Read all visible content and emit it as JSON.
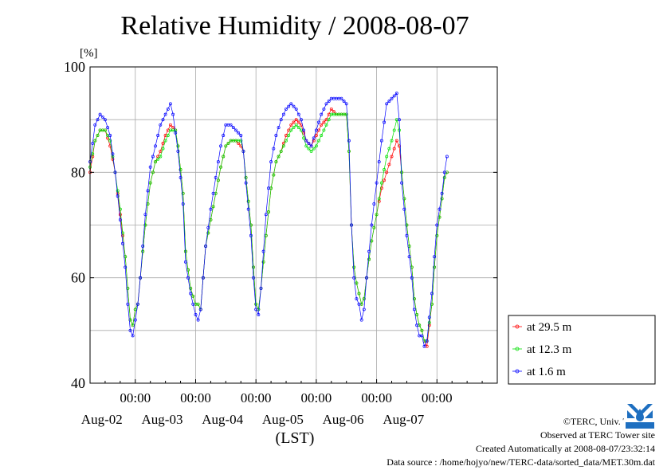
{
  "chart_data": {
    "type": "line",
    "title": "Relative Humidity / 2008-08-07",
    "ylabel": "[%]",
    "xlabel": "(LST)",
    "ylim": [
      40,
      100
    ],
    "yticks": [
      "100",
      "80",
      "60",
      "40"
    ],
    "xticks": [
      {
        "time": "00:00",
        "date": "Aug-02"
      },
      {
        "time": "00:00",
        "date": "Aug-03"
      },
      {
        "time": "00:00",
        "date": "Aug-04"
      },
      {
        "time": "00:00",
        "date": "Aug-05"
      },
      {
        "time": "00:00",
        "date": "Aug-06"
      },
      {
        "time": "00:00",
        "date": "Aug-07"
      }
    ],
    "x_unit": "hours",
    "x_range": [
      -18,
      144
    ],
    "grid": true,
    "legend_position": "bottom-right",
    "series": [
      {
        "name": "at 29.5 m",
        "color": "#ff0000",
        "points": [
          [
            -18,
            80
          ],
          [
            -16,
            86
          ],
          [
            -14,
            88
          ],
          [
            -12,
            88
          ],
          [
            -10,
            85
          ],
          [
            -8,
            80
          ],
          [
            -6,
            72
          ],
          [
            -4,
            64
          ],
          [
            -3,
            58
          ],
          [
            -2,
            52
          ],
          [
            -1,
            51
          ],
          [
            0,
            54
          ],
          [
            1,
            55
          ],
          [
            2,
            60
          ],
          [
            4,
            70
          ],
          [
            6,
            78
          ],
          [
            8,
            82
          ],
          [
            10,
            84
          ],
          [
            12,
            87
          ],
          [
            14,
            89
          ],
          [
            16,
            88
          ],
          [
            17,
            85
          ],
          [
            19,
            76
          ],
          [
            20,
            65
          ],
          [
            22,
            58
          ],
          [
            24,
            55
          ],
          [
            25,
            55
          ],
          [
            26,
            54
          ],
          [
            27,
            60
          ],
          [
            28,
            66
          ],
          [
            30,
            71
          ],
          [
            32,
            76
          ],
          [
            34,
            81
          ],
          [
            36,
            85
          ],
          [
            38,
            86
          ],
          [
            40,
            86
          ],
          [
            42,
            85
          ],
          [
            43,
            84
          ],
          [
            44,
            79
          ],
          [
            46,
            70
          ],
          [
            47,
            62
          ],
          [
            48,
            55
          ],
          [
            49,
            54
          ],
          [
            50,
            58
          ],
          [
            52,
            68
          ],
          [
            54,
            77
          ],
          [
            56,
            82
          ],
          [
            58,
            84
          ],
          [
            60,
            87
          ],
          [
            62,
            89
          ],
          [
            64,
            90
          ],
          [
            66,
            89
          ],
          [
            68,
            86
          ],
          [
            70,
            85
          ],
          [
            72,
            87
          ],
          [
            74,
            89
          ],
          [
            76,
            90
          ],
          [
            78,
            92
          ],
          [
            80,
            91
          ],
          [
            82,
            91
          ],
          [
            84,
            91
          ],
          [
            85,
            84
          ],
          [
            86,
            70
          ],
          [
            87,
            62
          ],
          [
            88,
            59
          ],
          [
            89,
            57
          ],
          [
            90,
            55
          ],
          [
            91,
            56
          ],
          [
            92,
            60
          ],
          [
            94,
            67
          ],
          [
            96,
            72
          ],
          [
            98,
            77
          ],
          [
            100,
            80
          ],
          [
            102,
            83
          ],
          [
            104,
            86
          ],
          [
            105,
            85
          ],
          [
            106,
            80
          ],
          [
            108,
            70
          ],
          [
            110,
            62
          ],
          [
            111,
            56
          ],
          [
            112,
            53
          ],
          [
            113,
            51
          ],
          [
            114,
            50
          ],
          [
            115,
            48
          ],
          [
            116,
            47
          ],
          [
            118,
            55
          ],
          [
            119,
            62
          ],
          [
            120,
            68
          ],
          [
            122,
            75
          ],
          [
            123,
            79
          ],
          [
            124,
            80
          ]
        ]
      },
      {
        "name": "at 12.3 m",
        "color": "#00e000",
        "points": [
          [
            -18,
            81
          ],
          [
            -16,
            86
          ],
          [
            -14,
            88
          ],
          [
            -12,
            88
          ],
          [
            -10,
            86
          ],
          [
            -8,
            80
          ],
          [
            -6,
            73
          ],
          [
            -4,
            64
          ],
          [
            -3,
            58
          ],
          [
            -2,
            52
          ],
          [
            -1,
            51
          ],
          [
            0,
            54
          ],
          [
            1,
            55
          ],
          [
            2,
            60
          ],
          [
            4,
            70
          ],
          [
            6,
            78
          ],
          [
            8,
            82
          ],
          [
            10,
            83
          ],
          [
            12,
            86
          ],
          [
            14,
            88
          ],
          [
            16,
            88
          ],
          [
            17,
            85
          ],
          [
            19,
            76
          ],
          [
            20,
            65
          ],
          [
            22,
            58
          ],
          [
            24,
            55
          ],
          [
            25,
            55
          ],
          [
            26,
            54
          ],
          [
            27,
            60
          ],
          [
            28,
            66
          ],
          [
            30,
            71
          ],
          [
            32,
            76
          ],
          [
            34,
            81
          ],
          [
            36,
            85
          ],
          [
            38,
            86
          ],
          [
            40,
            86
          ],
          [
            42,
            86
          ],
          [
            43,
            84
          ],
          [
            44,
            79
          ],
          [
            46,
            70
          ],
          [
            47,
            62
          ],
          [
            48,
            55
          ],
          [
            49,
            54
          ],
          [
            50,
            58
          ],
          [
            52,
            68
          ],
          [
            54,
            77
          ],
          [
            56,
            82
          ],
          [
            58,
            84
          ],
          [
            60,
            86
          ],
          [
            62,
            88
          ],
          [
            64,
            89
          ],
          [
            66,
            88
          ],
          [
            68,
            85
          ],
          [
            70,
            84
          ],
          [
            72,
            85
          ],
          [
            74,
            87
          ],
          [
            76,
            89
          ],
          [
            78,
            91
          ],
          [
            80,
            91
          ],
          [
            82,
            91
          ],
          [
            84,
            91
          ],
          [
            85,
            84
          ],
          [
            86,
            70
          ],
          [
            87,
            62
          ],
          [
            88,
            59
          ],
          [
            89,
            57
          ],
          [
            90,
            55
          ],
          [
            91,
            56
          ],
          [
            92,
            60
          ],
          [
            94,
            67
          ],
          [
            96,
            72
          ],
          [
            98,
            78
          ],
          [
            100,
            83
          ],
          [
            102,
            86
          ],
          [
            104,
            90
          ],
          [
            105,
            88
          ],
          [
            106,
            80
          ],
          [
            108,
            70
          ],
          [
            110,
            62
          ],
          [
            111,
            56
          ],
          [
            112,
            53
          ],
          [
            113,
            51
          ],
          [
            114,
            50
          ],
          [
            115,
            48
          ],
          [
            116,
            48
          ],
          [
            118,
            55
          ],
          [
            119,
            62
          ],
          [
            120,
            68
          ],
          [
            122,
            75
          ],
          [
            123,
            79
          ],
          [
            124,
            80
          ]
        ]
      },
      {
        "name": "at 1.6 m",
        "color": "#0000ff",
        "points": [
          [
            -18,
            82
          ],
          [
            -16,
            89
          ],
          [
            -14,
            91
          ],
          [
            -12,
            90
          ],
          [
            -10,
            87
          ],
          [
            -8,
            80
          ],
          [
            -6,
            71
          ],
          [
            -4,
            62
          ],
          [
            -3,
            55
          ],
          [
            -2,
            50
          ],
          [
            -1,
            49
          ],
          [
            0,
            52
          ],
          [
            1,
            55
          ],
          [
            2,
            60
          ],
          [
            4,
            72
          ],
          [
            6,
            81
          ],
          [
            8,
            85
          ],
          [
            10,
            89
          ],
          [
            12,
            91
          ],
          [
            14,
            93
          ],
          [
            15,
            91
          ],
          [
            17,
            84
          ],
          [
            19,
            74
          ],
          [
            20,
            63
          ],
          [
            22,
            57
          ],
          [
            24,
            53
          ],
          [
            25,
            52
          ],
          [
            26,
            54
          ],
          [
            27,
            60
          ],
          [
            28,
            66
          ],
          [
            30,
            73
          ],
          [
            32,
            79
          ],
          [
            34,
            85
          ],
          [
            36,
            89
          ],
          [
            38,
            89
          ],
          [
            40,
            88
          ],
          [
            42,
            87
          ],
          [
            43,
            84
          ],
          [
            44,
            78
          ],
          [
            46,
            68
          ],
          [
            47,
            60
          ],
          [
            48,
            54
          ],
          [
            49,
            53
          ],
          [
            50,
            58
          ],
          [
            52,
            72
          ],
          [
            54,
            82
          ],
          [
            56,
            87
          ],
          [
            58,
            90
          ],
          [
            60,
            92
          ],
          [
            62,
            93
          ],
          [
            64,
            92
          ],
          [
            66,
            90
          ],
          [
            68,
            86
          ],
          [
            70,
            85
          ],
          [
            72,
            88
          ],
          [
            74,
            91
          ],
          [
            76,
            93
          ],
          [
            78,
            94
          ],
          [
            80,
            94
          ],
          [
            82,
            94
          ],
          [
            84,
            93
          ],
          [
            85,
            86
          ],
          [
            86,
            70
          ],
          [
            87,
            60
          ],
          [
            88,
            56
          ],
          [
            89,
            55
          ],
          [
            90,
            52
          ],
          [
            91,
            54
          ],
          [
            92,
            60
          ],
          [
            94,
            70
          ],
          [
            96,
            78
          ],
          [
            98,
            86
          ],
          [
            100,
            93
          ],
          [
            102,
            94
          ],
          [
            104,
            95
          ],
          [
            105,
            90
          ],
          [
            106,
            78
          ],
          [
            108,
            68
          ],
          [
            110,
            60
          ],
          [
            111,
            54
          ],
          [
            112,
            51
          ],
          [
            113,
            49
          ],
          [
            114,
            49
          ],
          [
            115,
            47
          ],
          [
            116,
            48
          ],
          [
            118,
            57
          ],
          [
            119,
            64
          ],
          [
            120,
            70
          ],
          [
            122,
            76
          ],
          [
            123,
            80
          ],
          [
            124,
            83
          ]
        ]
      }
    ]
  },
  "credits": {
    "copyright": "©TERC, Univ. Tsukuba",
    "observed": "Observed at TERC Tower site",
    "created": "Created Automatically at 2008-08-07/23:32:14",
    "source": "Data source : /home/hojyo/new/TERC-data/sorted_data/MET.30m.dat"
  },
  "logo": {
    "text": "TERC",
    "color": "#1e6fc0"
  }
}
